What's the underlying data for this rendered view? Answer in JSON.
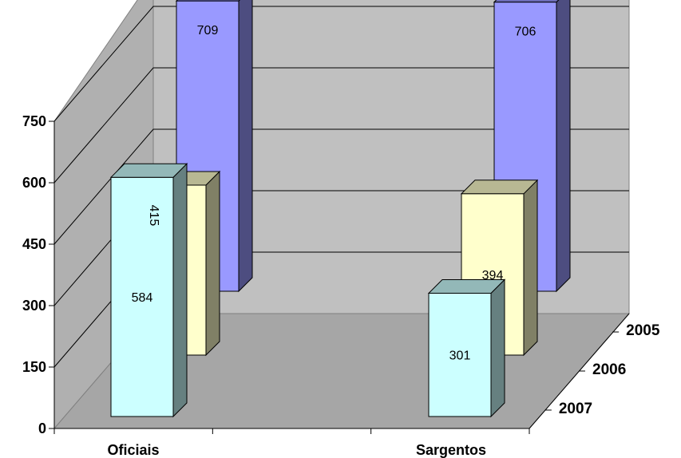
{
  "chart_data": {
    "type": "bar",
    "variant": "3d-clustered-depth",
    "title": "",
    "xlabel": "",
    "ylabel": "",
    "categories": [
      "Oficiais",
      "Sargentos"
    ],
    "series": [
      {
        "name": "2005",
        "values": [
          709,
          706
        ],
        "color": "#9999ff"
      },
      {
        "name": "2006",
        "values": [
          415,
          394
        ],
        "color": "#ffffcc"
      },
      {
        "name": "2007",
        "values": [
          584,
          301
        ],
        "color": "#ccffff"
      }
    ],
    "ylim": [
      0,
      750
    ],
    "yticks": [
      "0",
      "150",
      "300",
      "450",
      "600",
      "750"
    ],
    "grid": true,
    "wall_color": "#c0c0c0"
  }
}
